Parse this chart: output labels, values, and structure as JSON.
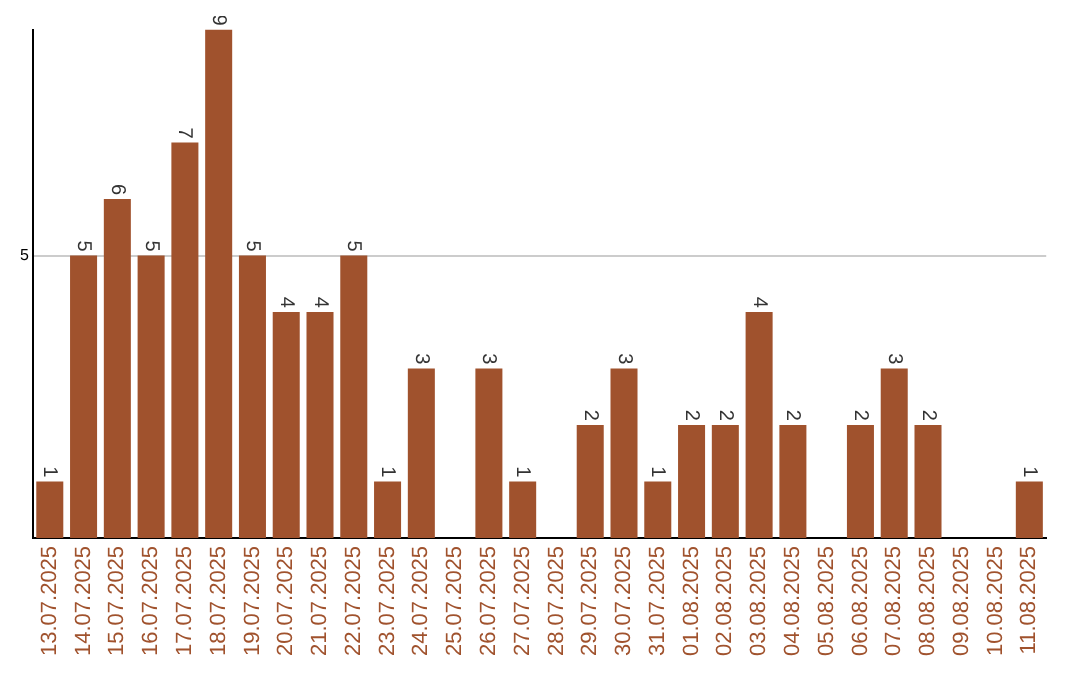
{
  "chart_data": {
    "type": "bar",
    "categories": [
      "13.07.2025",
      "14.07.2025",
      "15.07.2025",
      "16.07.2025",
      "17.07.2025",
      "18.07.2025",
      "19.07.2025",
      "20.07.2025",
      "21.07.2025",
      "22.07.2025",
      "23.07.2025",
      "24.07.2025",
      "25.07.2025",
      "26.07.2025",
      "27.07.2025",
      "28.07.2025",
      "29.07.2025",
      "30.07.2025",
      "31.07.2025",
      "01.08.2025",
      "02.08.2025",
      "03.08.2025",
      "04.08.2025",
      "05.08.2025",
      "06.08.2025",
      "07.08.2025",
      "08.08.2025",
      "09.08.2025",
      "10.08.2025",
      "11.08.2025"
    ],
    "values": [
      1,
      5,
      6,
      5,
      7,
      9,
      5,
      4,
      4,
      5,
      1,
      3,
      0,
      3,
      1,
      0,
      2,
      3,
      1,
      2,
      2,
      4,
      2,
      0,
      2,
      3,
      2,
      0,
      0,
      1
    ],
    "value_labels": [
      "1",
      "5",
      "6",
      "5",
      "7",
      "9",
      "5",
      "4",
      "4",
      "5",
      "1",
      "3",
      null,
      "3",
      "1",
      null,
      "2",
      "3",
      "1",
      "2",
      "2",
      "4",
      "2",
      null,
      "2",
      "3",
      "2",
      null,
      null,
      "1"
    ],
    "color": "#a0522d",
    "ylim": [
      0,
      9
    ],
    "yticks": [
      5
    ],
    "grid": "y"
  }
}
